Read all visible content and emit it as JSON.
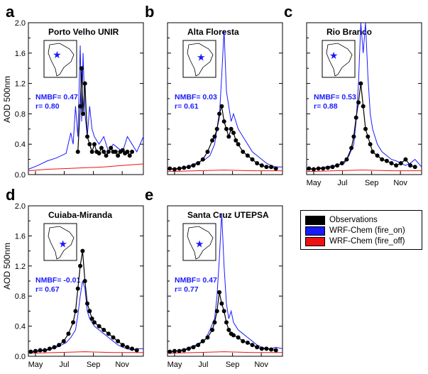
{
  "figure": {
    "ylabel": "AOD 500nm",
    "month_labels": [
      "May",
      "Jul",
      "Sep",
      "Nov"
    ],
    "yticks": [
      "0.0",
      "0.4",
      "0.8",
      "1.2",
      "1.6",
      "2.0"
    ]
  },
  "legend": {
    "items": [
      {
        "label": "Observations",
        "color": "#000000"
      },
      {
        "label": "WRF-Chem (fire_on)",
        "color": "#1a1aff"
      },
      {
        "label": "WRF-Chem (fire_off)",
        "color": "#ee1111"
      }
    ]
  },
  "chart_data": [
    {
      "type": "line",
      "panel_letter": "a",
      "title": "Porto Velho UNIR",
      "nmbf": "NMBF= 0.47",
      "r": "r= 0.80",
      "ylim": [
        0,
        2.0
      ],
      "x_domain": [
        "May 1",
        "Dec 31"
      ],
      "series": [
        {
          "name": "WRF-Chem (fire_on)",
          "x_day": [
            0,
            20,
            40,
            60,
            80,
            90,
            95,
            100,
            105,
            110,
            113,
            116,
            120,
            125,
            130,
            135,
            140,
            150,
            160,
            170,
            180,
            190,
            200,
            210,
            220,
            230,
            244
          ],
          "values": [
            0.07,
            0.12,
            0.18,
            0.22,
            0.28,
            0.55,
            0.4,
            0.9,
            0.5,
            1.7,
            0.7,
            1.6,
            0.8,
            0.5,
            0.9,
            0.6,
            0.5,
            0.4,
            0.5,
            0.3,
            0.4,
            0.35,
            0.3,
            0.5,
            0.4,
            0.3,
            0.5
          ]
        },
        {
          "name": "WRF-Chem (fire_off)",
          "x_day": [
            0,
            40,
            80,
            120,
            160,
            200,
            244
          ],
          "values": [
            0.05,
            0.07,
            0.08,
            0.09,
            0.1,
            0.12,
            0.14
          ]
        },
        {
          "name": "Observations",
          "x_day": [
            105,
            110,
            113,
            116,
            120,
            125,
            130,
            135,
            140,
            145,
            150,
            155,
            160,
            165,
            170,
            175,
            180,
            185,
            190,
            195,
            200,
            205,
            210,
            215,
            220
          ],
          "values": [
            0.3,
            0.9,
            1.4,
            0.8,
            1.2,
            0.5,
            0.4,
            0.3,
            0.4,
            0.3,
            0.28,
            0.35,
            0.3,
            0.25,
            0.3,
            0.35,
            0.3,
            0.3,
            0.25,
            0.3,
            0.32,
            0.28,
            0.3,
            0.25,
            0.3
          ]
        }
      ],
      "map_star": {
        "lon": 0.4,
        "lat": 0.38
      }
    },
    {
      "type": "line",
      "panel_letter": "b",
      "title": "Alta Floresta",
      "nmbf": "NMBF= 0.03",
      "r": "r= 0.61",
      "ylim": [
        0,
        2.0
      ],
      "x_domain": [
        "May 1",
        "Dec 31"
      ],
      "series": [
        {
          "name": "WRF-Chem (fire_on)",
          "x_day": [
            0,
            20,
            40,
            60,
            80,
            90,
            100,
            105,
            110,
            115,
            120,
            125,
            130,
            135,
            140,
            150,
            160,
            170,
            180,
            190,
            200,
            210,
            220,
            230,
            244
          ],
          "values": [
            0.06,
            0.08,
            0.1,
            0.15,
            0.2,
            0.25,
            0.4,
            0.6,
            0.75,
            1.3,
            1.9,
            1.1,
            0.9,
            0.7,
            0.8,
            0.6,
            0.5,
            0.4,
            0.3,
            0.25,
            0.2,
            0.15,
            0.12,
            0.1,
            0.1
          ]
        },
        {
          "name": "WRF-Chem (fire_off)",
          "x_day": [
            0,
            60,
            120,
            180,
            244
          ],
          "values": [
            0.04,
            0.05,
            0.06,
            0.05,
            0.05
          ]
        },
        {
          "name": "Observations",
          "x_day": [
            5,
            15,
            25,
            35,
            45,
            55,
            65,
            75,
            85,
            95,
            100,
            105,
            110,
            115,
            120,
            125,
            130,
            135,
            140,
            145,
            150,
            160,
            170,
            180,
            190,
            200,
            210,
            220,
            230
          ],
          "values": [
            0.08,
            0.07,
            0.08,
            0.09,
            0.1,
            0.12,
            0.15,
            0.2,
            0.3,
            0.45,
            0.5,
            0.6,
            0.8,
            0.9,
            0.7,
            0.6,
            0.5,
            0.6,
            0.55,
            0.45,
            0.4,
            0.3,
            0.25,
            0.2,
            0.15,
            0.12,
            0.1,
            0.1,
            0.08
          ]
        }
      ],
      "map_star": {
        "lon": 0.55,
        "lat": 0.45
      }
    },
    {
      "type": "line",
      "panel_letter": "c",
      "title": "Rio Branco",
      "nmbf": "NMBF= 0.53",
      "r": "r= 0.88",
      "ylim": [
        0,
        2.0
      ],
      "x_domain": [
        "May 1",
        "Dec 31"
      ],
      "series": [
        {
          "name": "WRF-Chem (fire_on)",
          "x_day": [
            0,
            20,
            40,
            60,
            80,
            90,
            100,
            105,
            110,
            115,
            120,
            125,
            130,
            135,
            140,
            150,
            160,
            170,
            180,
            190,
            200,
            210,
            220,
            230,
            244
          ],
          "values": [
            0.06,
            0.08,
            0.1,
            0.12,
            0.15,
            0.25,
            0.4,
            0.7,
            1.2,
            2.0,
            1.6,
            2.0,
            1.3,
            0.8,
            0.6,
            0.4,
            0.3,
            0.25,
            0.2,
            0.18,
            0.15,
            0.12,
            0.15,
            0.2,
            0.1
          ]
        },
        {
          "name": "WRF-Chem (fire_off)",
          "x_day": [
            0,
            60,
            120,
            180,
            244
          ],
          "values": [
            0.04,
            0.05,
            0.06,
            0.05,
            0.05
          ]
        },
        {
          "name": "Observations",
          "x_day": [
            5,
            15,
            25,
            35,
            45,
            55,
            65,
            75,
            85,
            95,
            100,
            105,
            110,
            115,
            120,
            125,
            130,
            135,
            140,
            150,
            160,
            170,
            180,
            190,
            200,
            210,
            220,
            230
          ],
          "values": [
            0.08,
            0.07,
            0.08,
            0.08,
            0.09,
            0.1,
            0.12,
            0.15,
            0.2,
            0.35,
            0.5,
            0.75,
            0.95,
            1.2,
            0.9,
            0.6,
            0.5,
            0.4,
            0.3,
            0.25,
            0.2,
            0.18,
            0.15,
            0.12,
            0.15,
            0.2,
            0.12,
            0.1
          ]
        }
      ],
      "map_star": {
        "lon": 0.35,
        "lat": 0.4
      }
    },
    {
      "type": "line",
      "panel_letter": "d",
      "title": "Cuiaba-Miranda",
      "nmbf": "NMBF= -0.01",
      "r": "r= 0.67",
      "ylim": [
        0,
        2.0
      ],
      "x_domain": [
        "May 1",
        "Dec 31"
      ],
      "series": [
        {
          "name": "WRF-Chem (fire_on)",
          "x_day": [
            0,
            20,
            40,
            60,
            80,
            90,
            100,
            105,
            110,
            115,
            120,
            125,
            130,
            135,
            140,
            150,
            160,
            170,
            180,
            190,
            200,
            210,
            220,
            230,
            244
          ],
          "values": [
            0.05,
            0.06,
            0.08,
            0.12,
            0.18,
            0.25,
            0.35,
            0.55,
            0.8,
            1.0,
            0.9,
            0.6,
            0.5,
            0.45,
            0.4,
            0.35,
            0.3,
            0.25,
            0.2,
            0.15,
            0.12,
            0.1,
            0.08,
            0.1,
            0.1
          ]
        },
        {
          "name": "WRF-Chem (fire_off)",
          "x_day": [
            0,
            60,
            120,
            180,
            244
          ],
          "values": [
            0.04,
            0.05,
            0.06,
            0.05,
            0.05
          ]
        },
        {
          "name": "Observations",
          "x_day": [
            5,
            15,
            25,
            35,
            45,
            55,
            65,
            75,
            85,
            95,
            100,
            105,
            110,
            115,
            120,
            125,
            130,
            135,
            140,
            150,
            160,
            170,
            180,
            190,
            200,
            210,
            220,
            230
          ],
          "values": [
            0.06,
            0.07,
            0.08,
            0.08,
            0.1,
            0.12,
            0.15,
            0.2,
            0.3,
            0.45,
            0.6,
            0.9,
            1.2,
            1.4,
            1.0,
            0.7,
            0.6,
            0.5,
            0.45,
            0.4,
            0.35,
            0.3,
            0.25,
            0.2,
            0.15,
            0.12,
            0.1,
            0.08
          ]
        }
      ],
      "map_star": {
        "lon": 0.58,
        "lat": 0.55
      }
    },
    {
      "type": "line",
      "panel_letter": "e",
      "title": "Santa Cruz UTEPSA",
      "nmbf": "NMBF= 0.47",
      "r": "r= 0.77",
      "ylim": [
        0,
        2.0
      ],
      "x_domain": [
        "May 1",
        "Dec 31"
      ],
      "series": [
        {
          "name": "WRF-Chem (fire_on)",
          "x_day": [
            0,
            20,
            40,
            60,
            80,
            90,
            100,
            105,
            110,
            115,
            120,
            125,
            130,
            135,
            140,
            150,
            160,
            170,
            180,
            190,
            200,
            210,
            220,
            230,
            244
          ],
          "values": [
            0.05,
            0.07,
            0.1,
            0.15,
            0.22,
            0.35,
            0.5,
            0.8,
            1.3,
            1.9,
            1.2,
            0.7,
            0.5,
            0.6,
            0.45,
            0.35,
            0.3,
            0.25,
            0.2,
            0.15,
            0.12,
            0.1,
            0.1,
            0.12,
            0.1
          ]
        },
        {
          "name": "WRF-Chem (fire_off)",
          "x_day": [
            0,
            60,
            120,
            180,
            244
          ],
          "values": [
            0.04,
            0.05,
            0.06,
            0.05,
            0.05
          ]
        },
        {
          "name": "Observations",
          "x_day": [
            5,
            15,
            25,
            35,
            45,
            55,
            65,
            75,
            85,
            95,
            100,
            105,
            110,
            115,
            120,
            125,
            130,
            135,
            140,
            150,
            160,
            170,
            180,
            190,
            200,
            210,
            220,
            230
          ],
          "values": [
            0.06,
            0.07,
            0.07,
            0.08,
            0.1,
            0.12,
            0.15,
            0.2,
            0.25,
            0.35,
            0.45,
            0.6,
            0.85,
            0.7,
            0.6,
            0.45,
            0.35,
            0.3,
            0.28,
            0.25,
            0.2,
            0.18,
            0.15,
            0.12,
            0.1,
            0.1,
            0.09,
            0.08
          ]
        }
      ],
      "map_star": {
        "lon": 0.5,
        "lat": 0.55
      }
    }
  ]
}
